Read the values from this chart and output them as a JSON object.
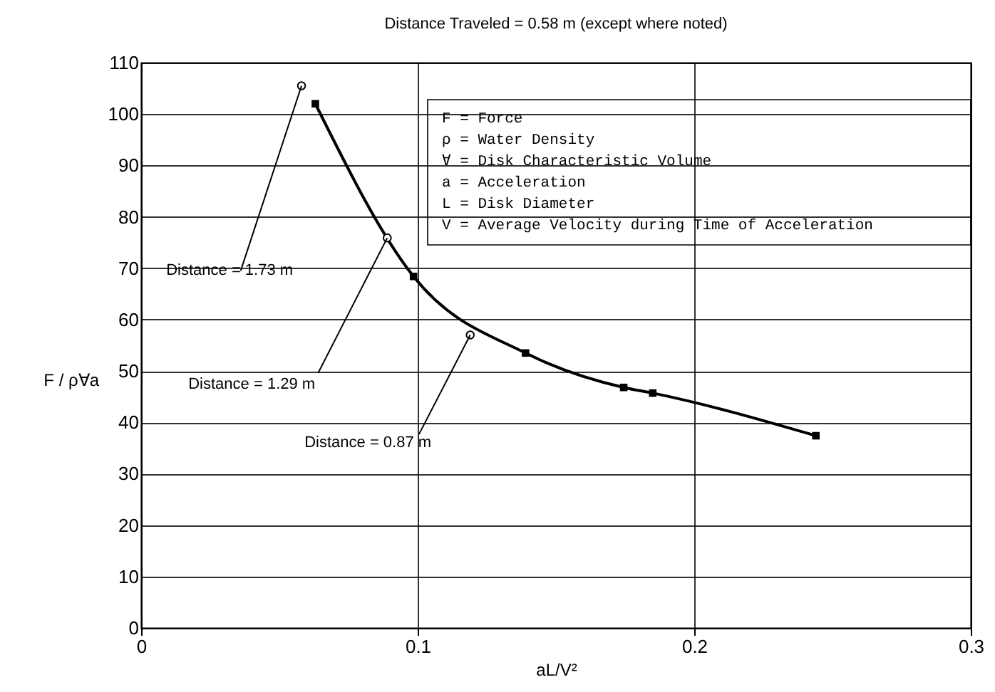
{
  "chart_data": {
    "type": "line",
    "title": "Distance Traveled = 0.58 m (except where noted)",
    "xlabel": "aL/V²",
    "ylabel": "F / ρ∀a",
    "series": [
      {
        "type": "line",
        "color": "#000000",
        "marker": "square",
        "x": [
          0.063,
          0.0985,
          0.139,
          0.1745,
          0.185,
          0.244
        ],
        "values": [
          102,
          68.4,
          53.5,
          46.8,
          45.7,
          37.4
        ]
      },
      {
        "type": "scatter",
        "color": "#000000",
        "marker": "circle",
        "x": [
          0.058,
          0.089,
          0.119
        ],
        "values": [
          105.5,
          75.9,
          57
        ]
      }
    ],
    "annotations": [
      {
        "text": "Distance = 1.73 m",
        "x": 0.058,
        "y": 105.5
      },
      {
        "text": "Distance = 1.29 m",
        "x": 0.089,
        "y": 75.9
      },
      {
        "text": "Distance = 0.87 m",
        "x": 0.119,
        "y": 57
      },
      "F = Force",
      "ρ = Water Density",
      "∀ = Disk Characteristic Volume",
      "a = Acceleration",
      "L = Disk Diameter",
      "V = Average Velocity during Time of Acceleration"
    ],
    "xlim": [
      0,
      0.3
    ],
    "xticks": [
      0,
      0.1,
      0.2,
      0.3
    ],
    "ylim": [
      0,
      110
    ],
    "yticks": [
      0,
      10,
      20,
      30,
      40,
      50,
      60,
      70,
      80,
      90,
      100,
      110
    ],
    "grid": true
  }
}
